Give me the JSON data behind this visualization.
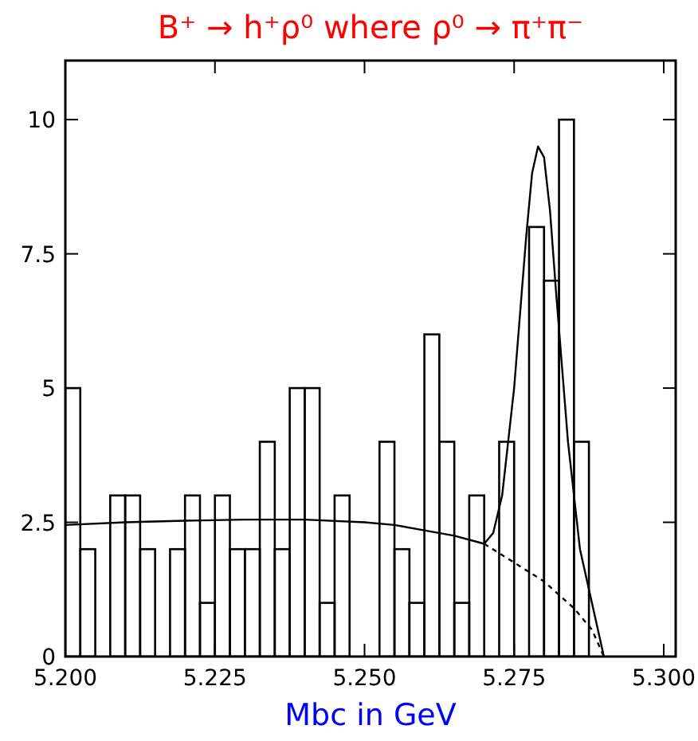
{
  "chart_data": {
    "type": "histogram",
    "title": "B⁺ → h⁺ρ⁰ where ρ⁰ → π⁺π⁻",
    "xlabel": "Mbc in GeV",
    "xlim": [
      5.2,
      5.302
    ],
    "ylim": [
      0,
      11.1
    ],
    "xticks": [
      {
        "value": 5.2,
        "label": "5.200"
      },
      {
        "value": 5.225,
        "label": "5.225"
      },
      {
        "value": 5.25,
        "label": "5.250"
      },
      {
        "value": 5.275,
        "label": "5.275"
      },
      {
        "value": 5.3,
        "label": "5.300"
      }
    ],
    "yticks": [
      0,
      2.5,
      5,
      7.5,
      10
    ],
    "grid": false,
    "series": [
      {
        "color": "#000000",
        "bins": [
          5.2,
          5.2025,
          5.205,
          5.2075,
          5.21,
          5.2125,
          5.215,
          5.2175,
          5.22,
          5.2225,
          5.225,
          5.2275,
          5.23,
          5.2325,
          5.235,
          5.2375,
          5.24,
          5.2425,
          5.245,
          5.2475,
          5.25,
          5.2525,
          5.255,
          5.2575,
          5.26,
          5.2625,
          5.265,
          5.2675,
          5.27,
          5.2725,
          5.275,
          5.2775,
          5.28,
          5.2825,
          5.285,
          5.2875,
          5.29,
          5.2925,
          5.295,
          5.2975,
          5.3
        ],
        "values": [
          5,
          2,
          0,
          3,
          3,
          2,
          0,
          2,
          3,
          1,
          3,
          2,
          2,
          4,
          2,
          5,
          5,
          1,
          3,
          0,
          0,
          4,
          2,
          1,
          6,
          4,
          1,
          3,
          0,
          4,
          0,
          8,
          7,
          10,
          4,
          0,
          0,
          0,
          0,
          0
        ]
      },
      {
        "type": "line",
        "color": "#000000",
        "line_style": "solid",
        "x": [
          5.2,
          5.21,
          5.22,
          5.23,
          5.24,
          5.25,
          5.255,
          5.26,
          5.265,
          5.27,
          5.2715,
          5.273,
          5.275,
          5.277,
          5.278,
          5.279,
          5.28,
          5.281,
          5.282,
          5.284,
          5.286,
          5.288,
          5.289,
          5.29
        ],
        "values": [
          2.45,
          2.5,
          2.53,
          2.55,
          2.55,
          2.5,
          2.45,
          2.35,
          2.25,
          2.1,
          2.3,
          3.0,
          5.0,
          7.8,
          9.0,
          9.5,
          9.3,
          8.3,
          6.8,
          4.0,
          2.0,
          1.0,
          0.5,
          0
        ]
      },
      {
        "type": "line",
        "color": "#000000",
        "line_style": "dashed",
        "x": [
          5.27,
          5.275,
          5.28,
          5.285,
          5.288,
          5.29
        ],
        "values": [
          2.1,
          1.75,
          1.4,
          0.9,
          0.5,
          0
        ]
      }
    ]
  }
}
